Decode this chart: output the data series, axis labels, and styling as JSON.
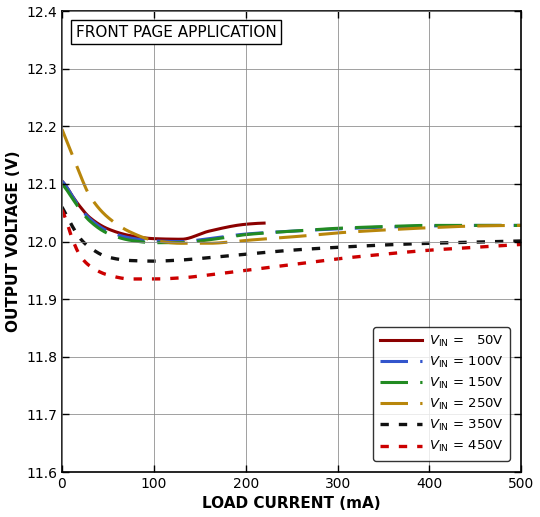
{
  "title": "FRONT PAGE APPLICATION",
  "xlabel": "LOAD CURRENT (mA)",
  "ylabel": "OUTPUT VOLTAGE (V)",
  "xlim": [
    0,
    500
  ],
  "ylim": [
    11.6,
    12.4
  ],
  "yticks": [
    11.6,
    11.7,
    11.8,
    11.9,
    12.0,
    12.1,
    12.2,
    12.3,
    12.4
  ],
  "xticks": [
    0,
    100,
    200,
    300,
    400,
    500
  ],
  "background_color": "#ffffff",
  "curves": [
    {
      "label": "V_IN =   50V",
      "color": "#8B0000",
      "linestyle": "solid",
      "linewidth": 2.2,
      "x": [
        0,
        5,
        10,
        20,
        30,
        50,
        75,
        100,
        130,
        160,
        200,
        220
      ],
      "y": [
        12.105,
        12.095,
        12.082,
        12.06,
        12.042,
        12.022,
        12.01,
        12.005,
        12.004,
        12.018,
        12.03,
        12.032
      ]
    },
    {
      "label": "V_IN = 100V",
      "color": "#3355CC",
      "linestyle": "dashed",
      "dash_pattern": [
        9,
        4
      ],
      "linewidth": 2.2,
      "x": [
        0,
        5,
        10,
        20,
        30,
        50,
        75,
        100,
        130,
        160,
        200,
        250,
        300,
        350,
        400,
        450,
        500
      ],
      "y": [
        12.105,
        12.095,
        12.082,
        12.058,
        12.04,
        12.018,
        12.006,
        12.001,
        12.0,
        12.005,
        12.013,
        12.018,
        12.022,
        12.025,
        12.027,
        12.028,
        12.028
      ]
    },
    {
      "label": "V_IN = 150V",
      "color": "#228B22",
      "linestyle": "dashed",
      "dash_pattern": [
        9,
        4
      ],
      "linewidth": 2.2,
      "x": [
        0,
        5,
        10,
        20,
        30,
        50,
        75,
        100,
        130,
        160,
        200,
        250,
        300,
        350,
        400,
        450,
        500
      ],
      "y": [
        12.1,
        12.09,
        12.078,
        12.055,
        12.036,
        12.014,
        12.002,
        11.998,
        11.998,
        12.003,
        12.012,
        12.018,
        12.023,
        12.026,
        12.028,
        12.028,
        12.028
      ]
    },
    {
      "label": "V_IN = 250V",
      "color": "#B8860B",
      "linestyle": "dashed",
      "dash_pattern": [
        9,
        4
      ],
      "linewidth": 2.2,
      "x": [
        0,
        5,
        10,
        20,
        30,
        50,
        75,
        100,
        130,
        160,
        200,
        250,
        300,
        350,
        400,
        450,
        500
      ],
      "y": [
        12.195,
        12.175,
        12.155,
        12.115,
        12.08,
        12.042,
        12.016,
        12.002,
        11.997,
        11.997,
        12.002,
        12.008,
        12.015,
        12.02,
        12.024,
        12.027,
        12.028
      ]
    },
    {
      "label": "V_IN = 350V",
      "color": "#111111",
      "linestyle": "dotted",
      "dash_pattern": [
        2.5,
        3
      ],
      "linewidth": 2.4,
      "x": [
        0,
        5,
        10,
        20,
        30,
        50,
        75,
        100,
        130,
        160,
        200,
        250,
        300,
        350,
        400,
        450,
        500
      ],
      "y": [
        12.06,
        12.045,
        12.03,
        12.005,
        11.99,
        11.973,
        11.967,
        11.966,
        11.968,
        11.972,
        11.978,
        11.985,
        11.99,
        11.994,
        11.997,
        11.999,
        12.001
      ]
    },
    {
      "label": "V_IN = 450V",
      "color": "#CC0000",
      "linestyle": "dotted",
      "dash_pattern": [
        2.5,
        3
      ],
      "linewidth": 2.4,
      "x": [
        0,
        5,
        10,
        20,
        30,
        50,
        75,
        100,
        130,
        160,
        200,
        250,
        300,
        350,
        400,
        450,
        500
      ],
      "y": [
        12.055,
        12.035,
        12.01,
        11.975,
        11.958,
        11.942,
        11.935,
        11.935,
        11.937,
        11.942,
        11.95,
        11.96,
        11.97,
        11.978,
        11.985,
        11.99,
        11.995
      ]
    }
  ],
  "legend_labels": [
    "V_IN =   50V",
    "V_IN = 100V",
    "V_IN = 150V",
    "V_IN = 250V",
    "V_IN = 350V",
    "V_IN = 450V"
  ]
}
